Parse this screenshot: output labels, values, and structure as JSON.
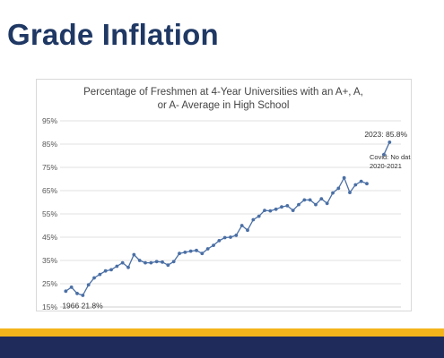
{
  "slide": {
    "title": "Grade Inflation"
  },
  "colors": {
    "title": "#1f3864",
    "series": "#4a6fa5",
    "gold_band": "#f3b41b",
    "navy_band": "#1f2b5a",
    "grid": "#d9d9d9"
  },
  "chart_data": {
    "type": "line",
    "title": "Percentage of Freshmen at 4-Year Universities with an A+, A, or A- Average in High School",
    "title_lines": [
      "Percentage of Freshmen at 4-Year Universities with an A+, A,",
      "or A- Average in High School"
    ],
    "xlabel": "",
    "ylabel": "",
    "xlim": [
      1965,
      2025
    ],
    "ylim": [
      15,
      95
    ],
    "x_ticks": [
      1965,
      1970,
      1975,
      1980,
      1985,
      1990,
      1995,
      2000,
      2005,
      2010,
      2015,
      2020,
      2025
    ],
    "y_ticks": [
      15,
      25,
      35,
      45,
      55,
      65,
      75,
      85,
      95
    ],
    "y_tick_labels": [
      "15%",
      "25%",
      "35%",
      "45%",
      "55%",
      "65%",
      "75%",
      "85%",
      "95%"
    ],
    "grid": "horizontal",
    "legend": "none",
    "series": [
      {
        "segments": [
          {
            "x": [
              1966,
              1967,
              1968,
              1969,
              1970,
              1971,
              1972,
              1973,
              1974,
              1975,
              1976,
              1977,
              1978,
              1979,
              1980,
              1981,
              1982,
              1983,
              1984,
              1985,
              1986,
              1987,
              1988,
              1989,
              1990,
              1991,
              1992,
              1993,
              1994,
              1995,
              1996,
              1997,
              1998,
              1999,
              2000,
              2001,
              2002,
              2003,
              2004,
              2005,
              2006,
              2007,
              2008,
              2009,
              2010,
              2011,
              2012,
              2013,
              2014,
              2015,
              2016,
              2017,
              2018,
              2019
            ],
            "y": [
              21.8,
              23.5,
              20.8,
              20,
              24.5,
              27.5,
              29,
              30.5,
              31,
              32.5,
              34,
              32,
              37.5,
              35,
              34,
              34,
              34.5,
              34.3,
              33,
              34.5,
              38,
              38.5,
              39,
              39.3,
              38,
              40,
              41.5,
              43.5,
              44.8,
              45,
              45.8,
              50,
              48,
              52.5,
              54,
              56.5,
              56.3,
              57,
              58,
              58.5,
              56.5,
              59,
              61,
              61,
              59,
              61.5,
              59.5,
              64,
              66,
              70.5,
              64.2,
              67.5,
              69,
              68
            ]
          },
          {
            "x": [
              2022,
              2023
            ],
            "y": [
              80.5,
              85.8
            ]
          }
        ]
      }
    ],
    "annotations": [
      {
        "text": "1966 21.8%",
        "x": 1966,
        "y": 21.8
      },
      {
        "text": "2023: 85.8%",
        "x": 2023,
        "y": 85.8
      },
      {
        "text": "Covid: No data",
        "x": 2021,
        "y": 78
      },
      {
        "text": "2020-2021",
        "x": 2021,
        "y": 78
      }
    ]
  }
}
